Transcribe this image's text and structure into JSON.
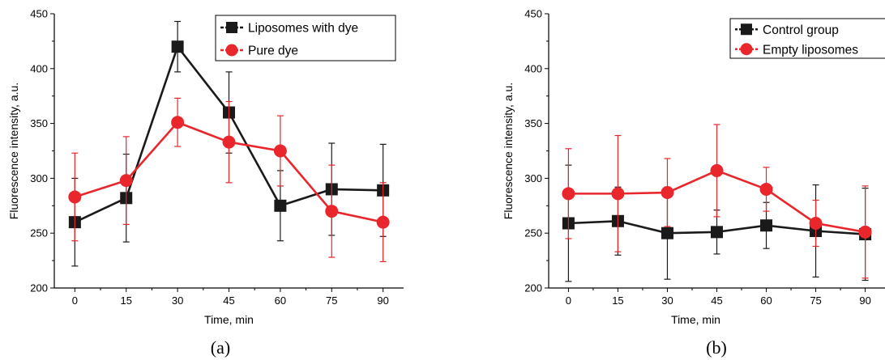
{
  "chart_data": [
    {
      "type": "line",
      "panel_label": "(a)",
      "xlabel": "Time, min",
      "ylabel": "Fluorescence intensity, a.u.",
      "x": [
        0,
        15,
        30,
        45,
        60,
        75,
        90
      ],
      "xlim": [
        -6,
        96
      ],
      "ylim": [
        200,
        450
      ],
      "xticks": [
        0,
        15,
        30,
        45,
        60,
        75,
        90
      ],
      "yticks": [
        200,
        250,
        300,
        350,
        400,
        450
      ],
      "legend_position": "top-right",
      "series": [
        {
          "name": "Liposomes with dye",
          "color": "#1a1a1a",
          "marker": "square",
          "values": [
            260,
            282,
            420,
            360,
            275,
            290,
            289
          ],
          "error": [
            40,
            40,
            23,
            37,
            32,
            42,
            42
          ]
        },
        {
          "name": "Pure dye",
          "color": "#e8262b",
          "marker": "circle",
          "values": [
            283,
            298,
            351,
            333,
            325,
            270,
            260
          ],
          "error": [
            40,
            40,
            22,
            37,
            32,
            42,
            36
          ]
        }
      ]
    },
    {
      "type": "line",
      "panel_label": "(b)",
      "xlabel": "Time, min",
      "ylabel": "Fluorescence intensity, a.u.",
      "x": [
        0,
        15,
        30,
        45,
        60,
        75,
        90
      ],
      "xlim": [
        -6,
        96
      ],
      "ylim": [
        200,
        450
      ],
      "xticks": [
        0,
        15,
        30,
        45,
        60,
        75,
        90
      ],
      "yticks": [
        200,
        250,
        300,
        350,
        400,
        450
      ],
      "legend_position": "top-right",
      "series": [
        {
          "name": "Control group",
          "color": "#1a1a1a",
          "marker": "square",
          "values": [
            259,
            261,
            250,
            251,
            257,
            252,
            249
          ],
          "error": [
            53,
            31,
            42,
            20,
            21,
            42,
            42
          ]
        },
        {
          "name": "Empty liposomes",
          "color": "#e8262b",
          "marker": "circle",
          "values": [
            286,
            286,
            287,
            307,
            290,
            259,
            251
          ],
          "error": [
            41,
            53,
            31,
            42,
            20,
            21,
            42
          ]
        }
      ]
    }
  ]
}
